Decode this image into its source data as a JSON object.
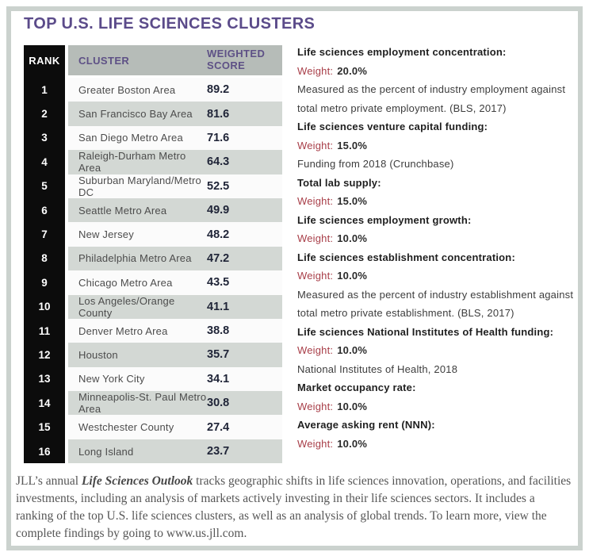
{
  "title": "TOP U.S. LIFE SCIENCES CLUSTERS",
  "table": {
    "headers": {
      "rank": "RANK",
      "cluster": "CLUSTER",
      "score": "WEIGHTED SCORE"
    },
    "rows": [
      {
        "rank": "1",
        "cluster": "Greater Boston Area",
        "score": "89.2"
      },
      {
        "rank": "2",
        "cluster": "San Francisco Bay Area",
        "score": "81.6"
      },
      {
        "rank": "3",
        "cluster": "San Diego Metro Area",
        "score": "71.6"
      },
      {
        "rank": "4",
        "cluster": "Raleigh-Durham Metro Area",
        "score": "64.3"
      },
      {
        "rank": "5",
        "cluster": "Suburban Maryland/Metro DC",
        "score": "52.5"
      },
      {
        "rank": "6",
        "cluster": "Seattle Metro Area",
        "score": "49.9"
      },
      {
        "rank": "7",
        "cluster": "New Jersey",
        "score": "48.2"
      },
      {
        "rank": "8",
        "cluster": "Philadelphia Metro Area",
        "score": "47.2"
      },
      {
        "rank": "9",
        "cluster": "Chicago Metro Area",
        "score": "43.5"
      },
      {
        "rank": "10",
        "cluster": "Los Angeles/Orange County",
        "score": "41.1"
      },
      {
        "rank": "11",
        "cluster": "Denver Metro Area",
        "score": "38.8"
      },
      {
        "rank": "12",
        "cluster": "Houston",
        "score": "35.7"
      },
      {
        "rank": "13",
        "cluster": "New York City",
        "score": "34.1"
      },
      {
        "rank": "14",
        "cluster": "Minneapolis-St. Paul Metro Area",
        "score": "30.8"
      },
      {
        "rank": "15",
        "cluster": "Westchester County",
        "score": "27.4"
      },
      {
        "rank": "16",
        "cluster": "Long Island",
        "score": "23.7"
      }
    ]
  },
  "criteria": {
    "weight_label": "Weight:",
    "items": [
      {
        "label": "Life sciences employment concentration:",
        "weight": "20.0%",
        "note": "Measured as the percent of industry employment against total metro private employment. (BLS, 2017)"
      },
      {
        "label": "Life sciences venture capital funding:",
        "weight": "15.0%",
        "note": "Funding from 2018 (Crunchbase)"
      },
      {
        "label": "Total lab supply:",
        "weight": "15.0%"
      },
      {
        "label": "Life sciences employment growth:",
        "weight": "10.0%"
      },
      {
        "label": "Life sciences establishment concentration:",
        "weight": "10.0%",
        "note": "Measured as the percent of industry establishment against total metro private establishment. (BLS, 2017)"
      },
      {
        "label": "Life sciences National Institutes of Health funding:",
        "weight": "10.0%",
        "note": "National Institutes of Health, 2018"
      },
      {
        "label": "Market occupancy rate:",
        "weight": "10.0%"
      },
      {
        "label": "Average asking rent (NNN):",
        "weight": "10.0%"
      }
    ]
  },
  "footer": {
    "prefix": "JLL’s annual ",
    "emphasis": "Life Sciences Outlook",
    "suffix": " tracks geographic shifts in life sciences innovation, operations, and facilities investments, including an analysis of markets actively investing in their life sciences sectors. It includes a ranking of the top U.S. life sciences clusters, as well as an analysis of global trends. To learn more, view the complete findings by going to www.us.jll.com."
  },
  "colors": {
    "title_purple": "#5b4b8a",
    "header_text_purple": "#5e5186",
    "header_bg": "#b6bcb8",
    "rank_column_bg": "#0c0c0c",
    "row_alt_gray": "#d3d8d4",
    "score_navy": "#1f2437",
    "weight_red": "#a83e48",
    "outer_border": "#cbd2ce"
  }
}
